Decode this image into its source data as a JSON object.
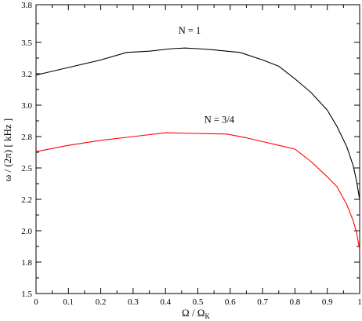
{
  "chart_data": {
    "type": "line",
    "xlabel": "Ω / Ω",
    "xlabel_sub": "K",
    "ylabel": "ω / (2π) [ kHz ]",
    "xlim": [
      0,
      1
    ],
    "ylim": [
      1.5,
      3.8
    ],
    "x_ticks": [
      0,
      0.1,
      0.2,
      0.3,
      0.4,
      0.5,
      0.6,
      0.7,
      0.8,
      0.9,
      1
    ],
    "x_tick_labels": [
      "0",
      "0.1",
      "0.2",
      "0.3",
      "0.4",
      "0.5",
      "0.6",
      "0.7",
      "0.8",
      "0.9",
      "1"
    ],
    "y_ticks": [
      1.5,
      1.75,
      2.0,
      2.25,
      2.5,
      2.75,
      3.0,
      3.25,
      3.5,
      3.8
    ],
    "y_tick_labels": [
      "1.5",
      "1.8",
      "2.0",
      "2.2",
      "2.5",
      "2.8",
      "3.0",
      "3.2",
      "3.5",
      "3.8"
    ],
    "grid": false,
    "legend": "none",
    "series": [
      {
        "name": "N = 1",
        "color": "#000000",
        "x": [
          0,
          0.1,
          0.2,
          0.28,
          0.35,
          0.42,
          0.46,
          0.5,
          0.55,
          0.63,
          0.7,
          0.75,
          0.8,
          0.85,
          0.9,
          0.93,
          0.96,
          0.98,
          0.99,
          1.0
        ],
        "y": [
          3.24,
          3.3,
          3.36,
          3.42,
          3.43,
          3.45,
          3.455,
          3.45,
          3.44,
          3.42,
          3.36,
          3.31,
          3.21,
          3.1,
          2.96,
          2.83,
          2.67,
          2.52,
          2.4,
          2.25
        ]
      },
      {
        "name": "N = 3/4",
        "color": "#ff0000",
        "x": [
          0,
          0.1,
          0.2,
          0.3,
          0.4,
          0.5,
          0.59,
          0.65,
          0.7,
          0.75,
          0.8,
          0.85,
          0.9,
          0.93,
          0.96,
          0.98,
          0.99,
          1.0
        ],
        "y": [
          2.63,
          2.68,
          2.72,
          2.75,
          2.78,
          2.775,
          2.77,
          2.74,
          2.71,
          2.68,
          2.65,
          2.55,
          2.43,
          2.35,
          2.21,
          2.08,
          1.99,
          1.85
        ]
      }
    ],
    "annotations": [
      {
        "text": "N = 1",
        "x": 0.44,
        "y": 3.57
      },
      {
        "text": "N = 3/4",
        "x": 0.52,
        "y": 2.86
      }
    ]
  }
}
